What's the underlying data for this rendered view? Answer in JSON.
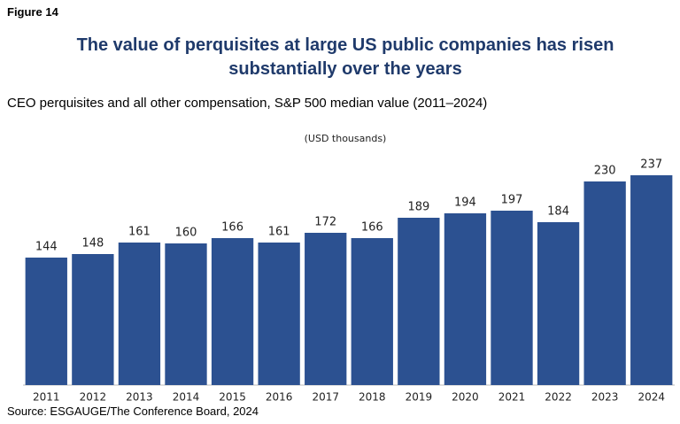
{
  "figure_label": "Figure 14",
  "chart_data": {
    "type": "bar",
    "title": "The value of perquisites at large US public companies has risen substantially over the years",
    "subtitle": "CEO perquisites and all other compensation, S&P 500 median value (2011–2024)",
    "y_label": "(USD thousands)",
    "categories": [
      "2011",
      "2012",
      "2013",
      "2014",
      "2015",
      "2016",
      "2017",
      "2018",
      "2019",
      "2020",
      "2021",
      "2022",
      "2023",
      "2024"
    ],
    "values": [
      144,
      148,
      161,
      160,
      166,
      161,
      172,
      166,
      189,
      194,
      197,
      184,
      230,
      237
    ],
    "color": "#2c5191",
    "ylim": [
      0,
      250
    ]
  },
  "source": "Source: ESGAUGE/The Conference Board, 2024"
}
